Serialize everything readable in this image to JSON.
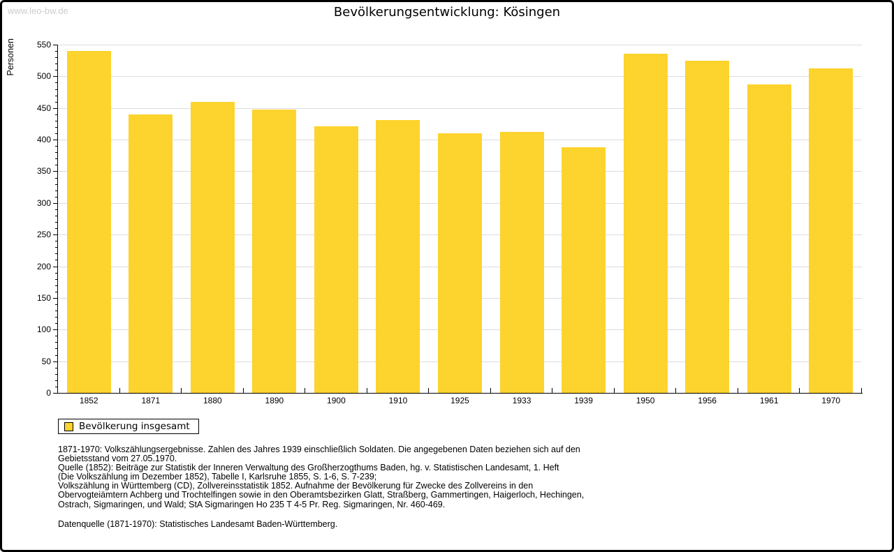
{
  "watermark": "www.leo-bw.de",
  "header": {
    "title": "Bevölkerungsentwicklung: Kösingen"
  },
  "chart_data": {
    "type": "bar",
    "title": "Bevölkerungsentwicklung: Kösingen",
    "ylabel": "Personen",
    "xlabel": "",
    "categories": [
      "1852",
      "1871",
      "1880",
      "1890",
      "1900",
      "1910",
      "1925",
      "1933",
      "1939",
      "1950",
      "1956",
      "1961",
      "1970"
    ],
    "values": [
      540,
      440,
      460,
      448,
      421,
      431,
      410,
      412,
      388,
      536,
      525,
      487,
      512
    ],
    "series_name": "Bevölkerung insgesamt",
    "ylim": [
      0,
      550
    ],
    "ytick_interval": 50,
    "ytick_minor_interval": 10,
    "grid": "horizontal",
    "legend_position": "bottom-left",
    "bar_color": "#fdd32d"
  },
  "legend": {
    "label": "Bevölkerung insgesamt"
  },
  "footnotes": {
    "lines": [
      "1871-1970: Volkszählungsergebnisse. Zahlen des Jahres 1939 einschließlich Soldaten. Die angegebenen Daten beziehen sich auf den",
      "Gebietsstand vom 27.05.1970.",
      "Quelle (1852): Beiträge zur Statistik der Inneren Verwaltung des Großherzogthums Baden, hg. v. Statistischen Landesamt, 1. Heft",
      "(Die Volkszählung im Dezember 1852), Tabelle I, Karlsruhe 1855, S. 1-6, S. 7-239;",
      "Volkszählung in Württemberg (CD), Zollvereinsstatistik 1852. Aufnahme der Bevölkerung für Zwecke des Zollvereins in den",
      "Obervogteiämtern Achberg und Trochtelfingen sowie in den Oberamtsbezirken Glatt, Straßberg, Gammertingen, Haigerloch, Hechingen,",
      "Ostrach, Sigmaringen, und Wald; StA Sigmaringen Ho 235 T 4-5 Pr. Reg. Sigmaringen, Nr. 460-469."
    ],
    "datasource": "Datenquelle (1871-1970): Statistisches Landesamt Baden-Württemberg."
  },
  "colors": {
    "bar": "#fdd32d",
    "gridline": "#dcdcdc",
    "axis": "#000000",
    "watermark_text": "#cccccc",
    "background": "#ffffff",
    "frame_border": "#000000"
  }
}
